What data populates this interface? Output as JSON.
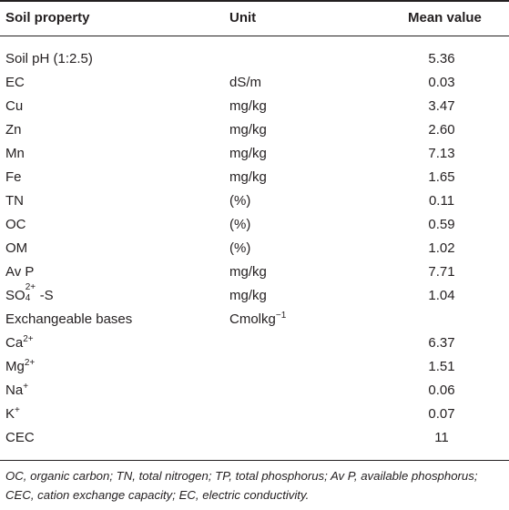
{
  "headers": {
    "property": "Soil property",
    "unit": "Unit",
    "value": "Mean value"
  },
  "rows": [
    {
      "property": "Soil pH (1:2.5)",
      "unit": "",
      "value": "5.36"
    },
    {
      "property": "EC",
      "unit": "dS/m",
      "value": "0.03"
    },
    {
      "property": "Cu",
      "unit": "mg/kg",
      "value": "3.47"
    },
    {
      "property": "Zn",
      "unit": "mg/kg",
      "value": "2.60"
    },
    {
      "property": "Mn",
      "unit": "mg/kg",
      "value": "7.13"
    },
    {
      "property": "Fe",
      "unit": "mg/kg",
      "value": "1.65"
    },
    {
      "property": "TN",
      "unit": "(%)",
      "value": "0.11"
    },
    {
      "property": "OC",
      "unit": "(%)",
      "value": "0.59"
    },
    {
      "property": "OM",
      "unit": "(%)",
      "value": "1.02"
    },
    {
      "property": "Av P",
      "unit": "mg/kg",
      "value": "7.71"
    },
    {
      "property_base": "SO",
      "property_sup": "2+",
      "property_sub": "4",
      "property_tail": "-S",
      "unit": "mg/kg",
      "value": "1.04"
    },
    {
      "property": "Exchangeable bases",
      "unit_base": "Cmolkg",
      "unit_sup": "−1",
      "value": ""
    },
    {
      "property_base": "Ca",
      "property_sup": "2+",
      "unit": "",
      "value": "6.37"
    },
    {
      "property_base": "Mg",
      "property_sup": "2+",
      "unit": "",
      "value": "1.51"
    },
    {
      "property_base": "Na",
      "property_sup": "+",
      "unit": "",
      "value": "0.06"
    },
    {
      "property_base": "K",
      "property_sup": "+",
      "unit": "",
      "value": "0.07"
    },
    {
      "property": "CEC",
      "unit": "",
      "value": "11"
    }
  ],
  "footnote": "OC, organic carbon; TN, total nitrogen; TP, total phosphorus; Av P, available phosphorus; CEC, cation exchange capacity; EC, electric conductivity."
}
